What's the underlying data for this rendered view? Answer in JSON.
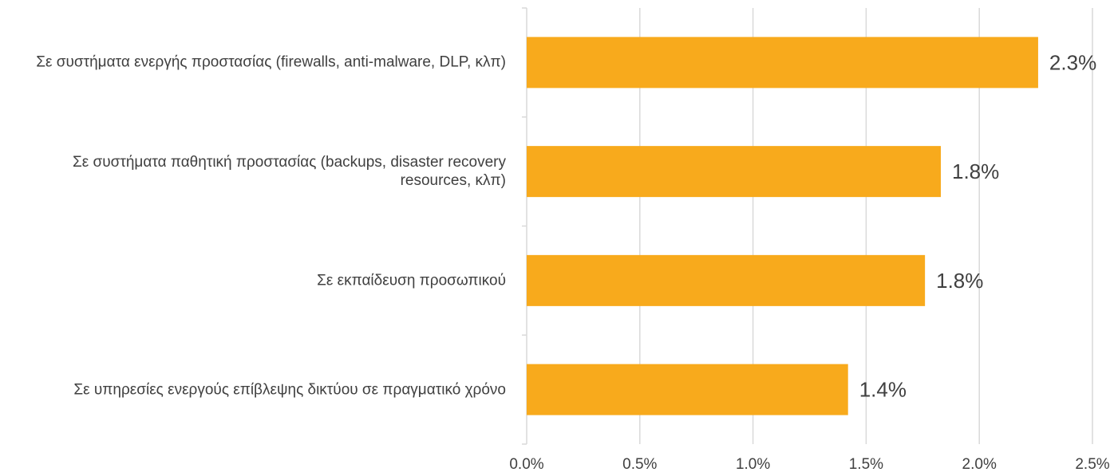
{
  "chart_data": {
    "type": "bar",
    "orientation": "horizontal",
    "categories": [
      "Σε συστήματα ενεργής προστασίας (firewalls, anti-malware, DLP, κλπ)",
      "Σε συστήματα παθητική προστασίας (backups, disaster recovery resources, κλπ)",
      "Σε εκπαίδευση προσωπικού",
      "Σε υπηρεσίες ενεργούς επίβλεψης δικτύου σε πραγματικό χρόνο"
    ],
    "values": [
      2.26,
      1.83,
      1.76,
      1.42
    ],
    "value_labels": [
      "2.3%",
      "1.8%",
      "1.8%",
      "1.4%"
    ],
    "color": "#f8aa1c",
    "xlim": [
      0,
      2.5
    ],
    "xticks": [
      {
        "value": 0,
        "label": "0.0%"
      },
      {
        "value": 0.5,
        "label": "0.5%"
      },
      {
        "value": 1,
        "label": "1.0%"
      },
      {
        "value": 1.5,
        "label": "1.5%"
      },
      {
        "value": 2,
        "label": "2.0%"
      },
      {
        "value": 2.5,
        "label": "2.5%"
      }
    ],
    "grid": true
  }
}
